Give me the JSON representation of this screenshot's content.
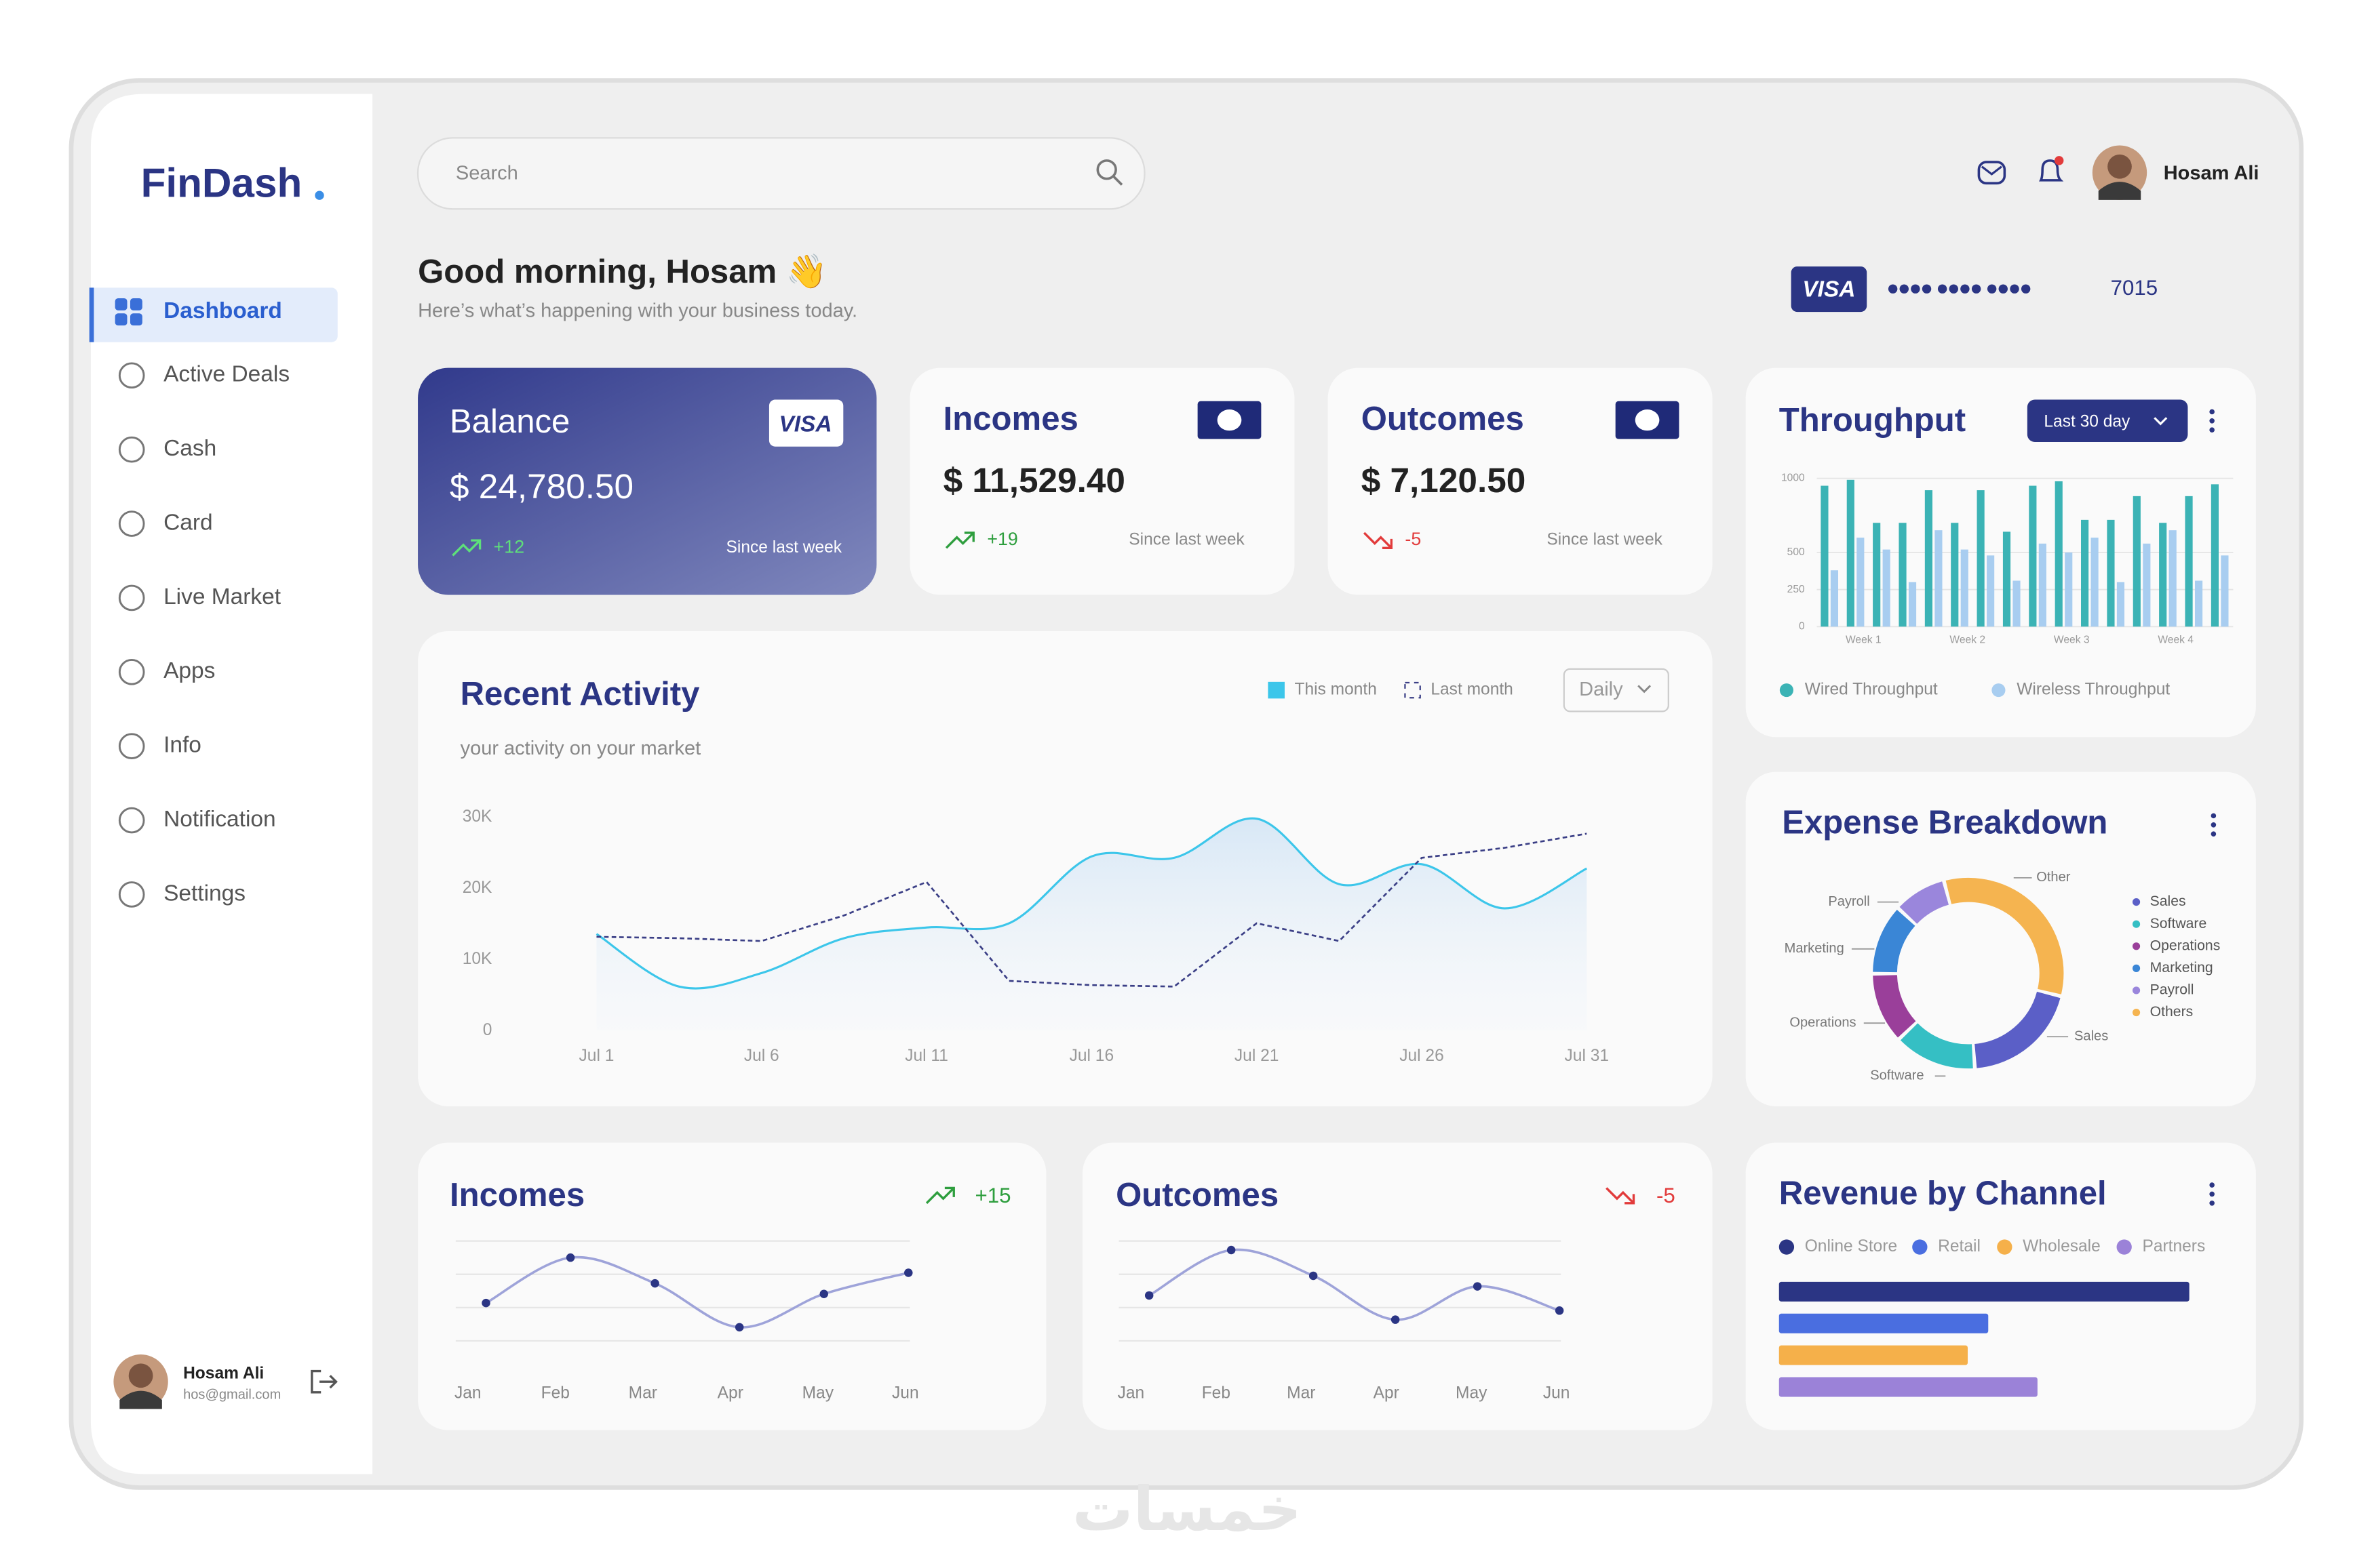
{
  "brand": "FinDash",
  "search": "Search",
  "user": {
    "name": "Hosam Ali",
    "email": "hos@gmail.com"
  },
  "nav": [
    "Dashboard",
    "Active Deals",
    "Cash",
    "Card",
    "Live Market",
    "Apps",
    "Info",
    "Notification",
    "Settings"
  ],
  "greeting": {
    "title": "Good morning, Hosam 👋",
    "subtitle": "Here’s what’s happening with your business today."
  },
  "payment_card": {
    "brand": "VISA",
    "number_mask": "●●●● ●●●● ●●●●",
    "last_digits": "7015"
  },
  "stats": [
    {
      "title": "Balance",
      "badge": "VISA",
      "amount": "$  24,780.50",
      "change": "+12",
      "note": "Since last week"
    },
    {
      "title": "Incomes",
      "amount": "$  11,529.40",
      "change": "+19",
      "note": "Since last week"
    },
    {
      "title": "Outcomes",
      "amount": "$  7,120.50",
      "change": "-5",
      "note": "Since last week"
    }
  ],
  "watermark": "خمسات",
  "chart_data": [
    {
      "type": "bar",
      "title": "Throughput",
      "control": "Last 30 day",
      "categories": [
        null,
        "Week 1",
        null,
        null,
        null,
        "Week 2",
        null,
        null,
        null,
        "Week 3",
        null,
        null,
        null,
        "Week 4",
        null,
        null
      ],
      "series": [
        {
          "name": "Wired Throughput",
          "color": "#3bb3b5",
          "values": [
            950,
            990,
            700,
            700,
            920,
            700,
            920,
            640,
            950,
            980,
            720,
            720,
            880,
            700,
            880,
            960
          ]
        },
        {
          "name": "Wireless Throughput",
          "color": "#a8cdf0",
          "values": [
            380,
            600,
            520,
            300,
            650,
            520,
            480,
            310,
            560,
            500,
            600,
            300,
            560,
            650,
            310,
            480
          ]
        }
      ],
      "ylim": [
        0,
        1000
      ],
      "yticks": [
        0,
        250,
        500,
        1000
      ],
      "grid": true
    },
    {
      "type": "line",
      "title": "Recent Activity",
      "subtitle": "your activity on your market",
      "control": "Daily",
      "categories": [
        "Jul 1",
        null,
        "Jul 6",
        null,
        "Jul 11",
        null,
        "Jul 16",
        null,
        "Jul 21",
        null,
        "Jul 26",
        null,
        "Jul 31"
      ],
      "series": [
        {
          "name": "This month",
          "color": "#3cc6ea",
          "line_style": "solid",
          "values": [
            13600,
            6200,
            8100,
            13000,
            14500,
            15100,
            24500,
            24300,
            29800,
            20600,
            23400,
            17200,
            22800
          ]
        },
        {
          "name": "Last month",
          "color": "#3b3f86",
          "line_style": "dashed",
          "values": [
            13200,
            13000,
            12600,
            16200,
            20900,
            7000,
            6400,
            6200,
            15100,
            12600,
            24300,
            25700,
            27700
          ]
        }
      ],
      "ylim": [
        0,
        30000
      ],
      "yticks": [
        0,
        {
          "value": 10000,
          "label": "10K"
        },
        {
          "value": 20000,
          "label": "20K"
        },
        {
          "value": 30000,
          "label": "30K"
        }
      ],
      "grid": false
    },
    {
      "type": "pie",
      "title": "Expense Breakdown",
      "categories": [
        "Sales",
        "Software",
        "Operations",
        "Marketing",
        "Payroll",
        "Others"
      ],
      "values": [
        20,
        14,
        12,
        12,
        9,
        33
      ],
      "colors": [
        "#5b5fc7",
        "#35bfc4",
        "#9a3f9a",
        "#3a86d6",
        "#9a86dc",
        "#f5b450"
      ],
      "callouts": [
        "Sales",
        "Software",
        "Operations",
        "Marketing",
        "Payroll",
        "Other"
      ]
    },
    {
      "type": "hbar",
      "title": "Revenue by Channel",
      "categories": [
        "Online Store",
        "Retail",
        "Wholesale",
        "Partners"
      ],
      "values": [
        100,
        51,
        46,
        63
      ],
      "colors": [
        "#2b3584",
        "#4a6ee0",
        "#f5b04a",
        "#9b82d8"
      ]
    },
    {
      "type": "line",
      "title": "Incomes",
      "change": "+15",
      "color": "#9ea3d9",
      "categories": [
        "Jan",
        "Feb",
        "Mar",
        "Apr",
        "May",
        "Jun"
      ],
      "values": [
        25,
        55,
        38,
        9,
        31,
        45
      ]
    },
    {
      "type": "line",
      "title": "Outcomes",
      "change": "-5",
      "color": "#9ea3d9",
      "categories": [
        "Jan",
        "Feb",
        "Mar",
        "Apr",
        "May",
        "Jun"
      ],
      "values": [
        30,
        60,
        43,
        14,
        36,
        20
      ]
    }
  ]
}
